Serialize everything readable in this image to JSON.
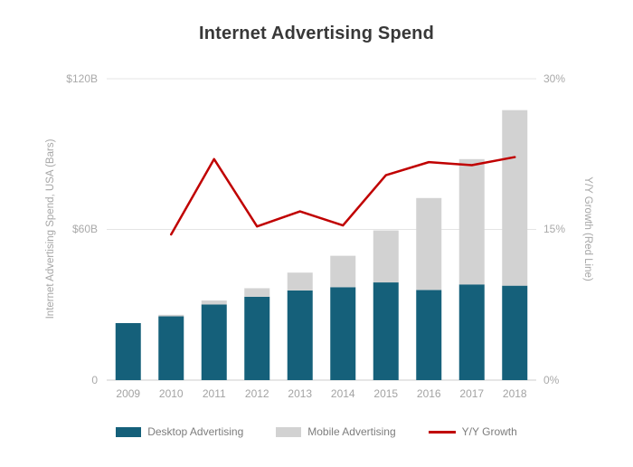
{
  "chart_data": {
    "type": "bar",
    "subtype": "stacked-bars-with-line",
    "title": "Internet Advertising Spend",
    "categories": [
      "2009",
      "2010",
      "2011",
      "2012",
      "2013",
      "2014",
      "2015",
      "2016",
      "2017",
      "2018"
    ],
    "series": [
      {
        "name": "Desktop Advertising",
        "type": "bar",
        "axis": "left",
        "color": "#15607a",
        "values": [
          22.7,
          25.4,
          30.1,
          33.2,
          35.7,
          37.0,
          38.9,
          35.9,
          38.1,
          37.6
        ]
      },
      {
        "name": "Mobile Advertising",
        "type": "bar",
        "axis": "left",
        "color": "#d2d2d2",
        "values": [
          0,
          0.6,
          1.6,
          3.4,
          7.1,
          12.5,
          20.7,
          36.6,
          49.9,
          69.9
        ]
      },
      {
        "name": "Y/Y Growth",
        "type": "line",
        "axis": "right",
        "color": "#c00000",
        "values_pct": [
          null,
          14.5,
          22.0,
          15.3,
          16.8,
          15.4,
          20.4,
          21.7,
          21.4,
          22.2
        ]
      }
    ],
    "left_axis": {
      "label": "Internet Advertising Spend, USA (Bars)",
      "ticks": [
        "$120B",
        "$60B",
        "0"
      ],
      "tick_values": [
        120,
        60,
        0
      ],
      "min": 0,
      "max": 120
    },
    "right_axis": {
      "label": "Y/Y Growth (Red Line)",
      "ticks": [
        "30%",
        "15%",
        "0%"
      ],
      "tick_values": [
        30,
        15,
        0
      ],
      "min": 0,
      "max": 30
    },
    "legend": [
      "Desktop Advertising",
      "Mobile Advertising",
      "Y/Y Growth"
    ],
    "grid": {
      "horizontal_gridlines_at": [
        60,
        120
      ],
      "baseline_at": 0
    },
    "colors": {
      "title_text": "#383838",
      "axis_text": "#a9a9a9",
      "gridline": "#e4e4e4"
    }
  }
}
